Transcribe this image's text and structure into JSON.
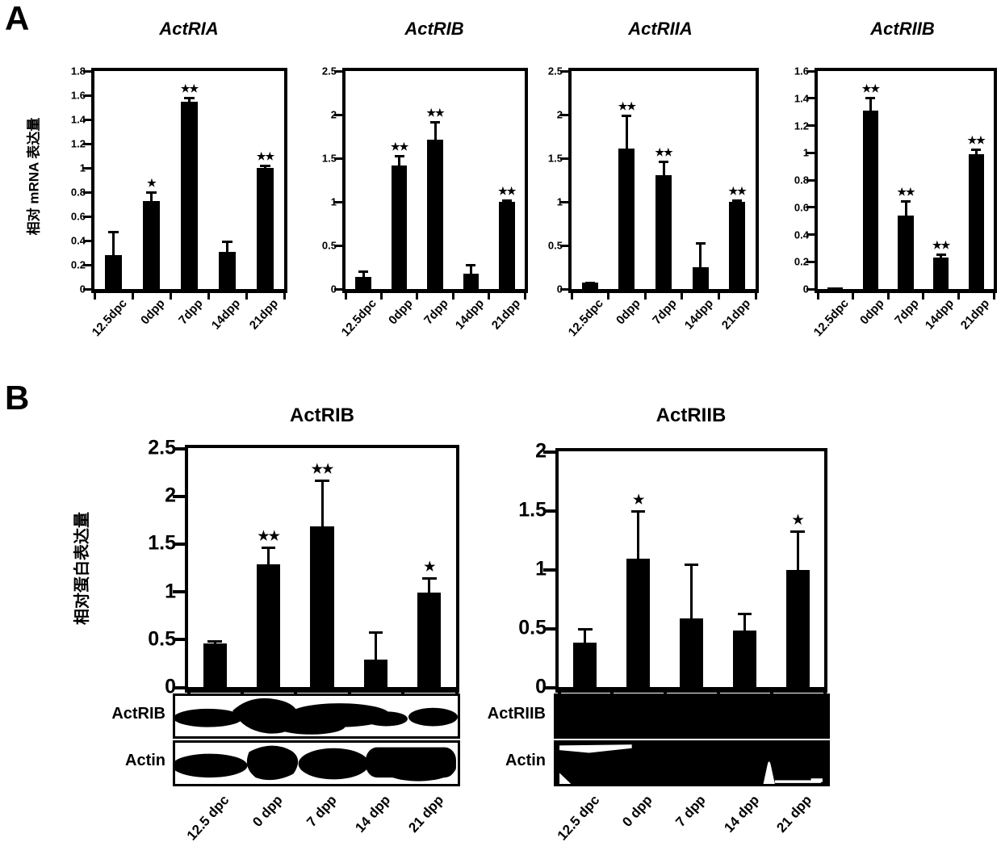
{
  "colors": {
    "ink": "#000000",
    "background": "#ffffff"
  },
  "panel_a": {
    "label": "A",
    "ylabel": "相对 mRNA 表达量"
  },
  "panel_b": {
    "label": "B",
    "ylabel": "相对蛋白表达量",
    "blots": {
      "left": {
        "row1_label": "ActRIB",
        "row2_label": "Actin"
      },
      "right": {
        "row1_label": "ActRIIB",
        "row2_label": "Actin"
      }
    }
  },
  "chart_data": [
    {
      "type": "bar",
      "panel": "A",
      "title": "ActRIA",
      "categories": [
        "12.5dpc",
        "0dpp",
        "7dpp",
        "14dpp",
        "21dpp"
      ],
      "values": [
        0.28,
        0.73,
        1.55,
        0.31,
        1.0
      ],
      "errors": [
        0.2,
        0.08,
        0.04,
        0.09,
        0.03
      ],
      "significance": [
        "",
        "*",
        "**",
        "",
        "**"
      ],
      "ylabel": "相对 mRNA 表达量",
      "xlabel": "",
      "ylim": [
        0,
        1.8
      ],
      "grid": false,
      "legend": null,
      "bar_color": "#000000",
      "yticks": [
        {
          "v": 0,
          "label": "0"
        },
        {
          "v": 0.2,
          "label": "0.2"
        },
        {
          "v": 0.4,
          "label": "0.4"
        },
        {
          "v": 0.6,
          "label": "0.6"
        },
        {
          "v": 0.8,
          "label": "0.8"
        },
        {
          "v": 1,
          "label": "1"
        },
        {
          "v": 1.2,
          "label": "1.2"
        },
        {
          "v": 1.4,
          "label": "1.4"
        },
        {
          "v": 1.6,
          "label": "1.6"
        },
        {
          "v": 1.8,
          "label": "1.8"
        }
      ]
    },
    {
      "type": "bar",
      "panel": "A",
      "title": "ActRIB",
      "categories": [
        "12.5dpc",
        "0dpp",
        "7dpp",
        "14dpp",
        "21dpp"
      ],
      "values": [
        0.14,
        1.42,
        1.71,
        0.18,
        1.0
      ],
      "errors": [
        0.07,
        0.12,
        0.22,
        0.11,
        0.03
      ],
      "significance": [
        "",
        "**",
        "**",
        "",
        "**"
      ],
      "ylabel": "相对 mRNA 表达量",
      "xlabel": "",
      "ylim": [
        0,
        2.5
      ],
      "grid": false,
      "legend": null,
      "bar_color": "#000000",
      "yticks": [
        {
          "v": 0,
          "label": "0"
        },
        {
          "v": 0.5,
          "label": "0.5"
        },
        {
          "v": 1,
          "label": "1"
        },
        {
          "v": 1.5,
          "label": "1.5"
        },
        {
          "v": 2,
          "label": "2"
        },
        {
          "v": 2.5,
          "label": "2.5"
        }
      ]
    },
    {
      "type": "bar",
      "panel": "A",
      "title": "ActRIIA",
      "categories": [
        "12.5dpc",
        "0dpp",
        "7dpp",
        "14dpp",
        "21dpp"
      ],
      "values": [
        0.07,
        1.61,
        1.31,
        0.25,
        1.0
      ],
      "errors": [
        0.01,
        0.39,
        0.16,
        0.29,
        0.03
      ],
      "significance": [
        "",
        "**",
        "**",
        "",
        "**"
      ],
      "ylabel": "相对 mRNA 表达量",
      "xlabel": "",
      "ylim": [
        0,
        2.5
      ],
      "grid": false,
      "legend": null,
      "bar_color": "#000000",
      "yticks": [
        {
          "v": 0,
          "label": "0"
        },
        {
          "v": 0.5,
          "label": "0.5"
        },
        {
          "v": 1,
          "label": "1"
        },
        {
          "v": 1.5,
          "label": "1.5"
        },
        {
          "v": 2,
          "label": "2"
        },
        {
          "v": 2.5,
          "label": "2.5"
        }
      ]
    },
    {
      "type": "bar",
      "panel": "A",
      "title": "ActRIIB",
      "categories": [
        "12.5dpc",
        "0dpp",
        "7dpp",
        "14dpp",
        "21dpp"
      ],
      "values": [
        0.01,
        1.31,
        0.54,
        0.23,
        0.99
      ],
      "errors": [
        0,
        0.1,
        0.11,
        0.03,
        0.04
      ],
      "significance": [
        "",
        "**",
        "**",
        "**",
        "**"
      ],
      "ylabel": "相对 mRNA 表达量",
      "xlabel": "",
      "ylim": [
        0,
        1.6
      ],
      "grid": false,
      "legend": null,
      "bar_color": "#000000",
      "yticks": [
        {
          "v": 0,
          "label": "0"
        },
        {
          "v": 0.2,
          "label": "0.2"
        },
        {
          "v": 0.4,
          "label": "0.4"
        },
        {
          "v": 0.6,
          "label": "0.6"
        },
        {
          "v": 0.8,
          "label": "0.8"
        },
        {
          "v": 1,
          "label": "1"
        },
        {
          "v": 1.2,
          "label": "1.2"
        },
        {
          "v": 1.4,
          "label": "1.4"
        },
        {
          "v": 1.6,
          "label": "1.6"
        }
      ]
    },
    {
      "type": "bar",
      "panel": "B",
      "title": "ActRIB",
      "categories": [
        "12.5 dpc",
        "0 dpp",
        "7 dpp",
        "14 dpp",
        "21 dpp"
      ],
      "values": [
        0.46,
        1.28,
        1.68,
        0.29,
        0.99
      ],
      "errors": [
        0.03,
        0.19,
        0.49,
        0.29,
        0.16
      ],
      "significance": [
        "",
        "**",
        "**",
        "",
        "*"
      ],
      "ylabel": "相对蛋白表达量",
      "xlabel": "",
      "ylim": [
        0,
        2.5
      ],
      "grid": false,
      "legend": null,
      "bar_color": "#000000",
      "yticks": [
        {
          "v": 0,
          "label": "0"
        },
        {
          "v": 0.5,
          "label": "0.5"
        },
        {
          "v": 1,
          "label": "1"
        },
        {
          "v": 1.5,
          "label": "1.5"
        },
        {
          "v": 2,
          "label": "2"
        },
        {
          "v": 2.5,
          "label": "2.5"
        }
      ]
    },
    {
      "type": "bar",
      "panel": "B",
      "title": "ActRIIB",
      "categories": [
        "12.5 dpc",
        "0 dpp",
        "7 dpp",
        "14 dpp",
        "21 dpp"
      ],
      "values": [
        0.38,
        1.09,
        0.58,
        0.48,
        0.99
      ],
      "errors": [
        0.12,
        0.41,
        0.47,
        0.15,
        0.34
      ],
      "significance": [
        "",
        "*",
        "",
        "",
        "*"
      ],
      "ylabel": "相对蛋白表达量",
      "xlabel": "",
      "ylim": [
        0,
        2
      ],
      "grid": false,
      "legend": null,
      "bar_color": "#000000",
      "yticks": [
        {
          "v": 0,
          "label": "0"
        },
        {
          "v": 0.5,
          "label": "0.5"
        },
        {
          "v": 1,
          "label": "1"
        },
        {
          "v": 1.5,
          "label": "1.5"
        },
        {
          "v": 2,
          "label": "2"
        }
      ]
    }
  ]
}
